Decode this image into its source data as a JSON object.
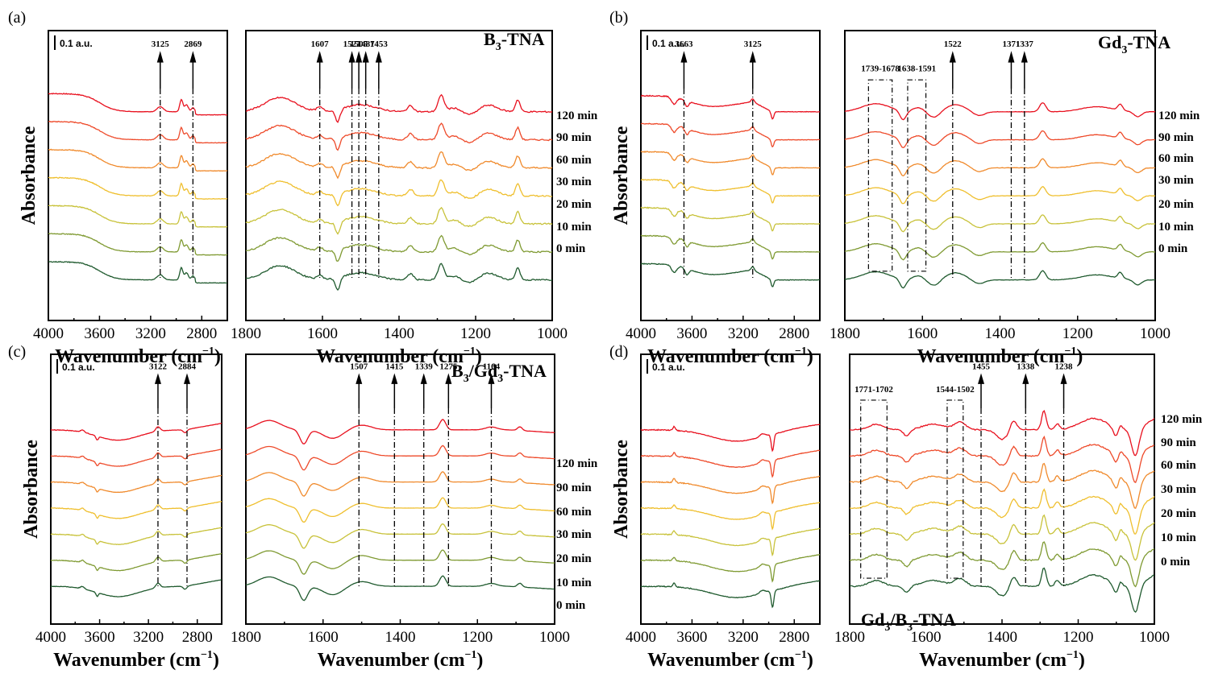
{
  "figure": {
    "ylabel": "Absorbance",
    "xlabel": "Wavenumber (cm",
    "xlabel_sup": "−1",
    "scale_bar_label": "0.1 a.u.",
    "time_labels": [
      "120 min",
      "90 min",
      "60 min",
      "30 min",
      "20 min",
      "10 min",
      "0 min"
    ],
    "series_colors": [
      "#e8101e",
      "#ee4a2a",
      "#f08a2c",
      "#efbf2e",
      "#c8c23a",
      "#7f9a32",
      "#1f5a2e"
    ]
  },
  "chart_data": [
    {
      "type": "line",
      "panel": "(a)",
      "title": "B3-TNA",
      "title_main": "B",
      "title_sub": "3",
      "title_rest": "-TNA",
      "left": {
        "xlim": [
          4000,
          2600
        ],
        "xticks": [
          "4000",
          "3600",
          "3200",
          "2800"
        ],
        "annotations": [
          {
            "label": "3125",
            "x": 3125,
            "style": "arrow-up"
          },
          {
            "label": "2869",
            "x": 2869,
            "style": "arrow-up"
          }
        ],
        "series_profile": "broad rise 3700-3300, peaks near 3125, 2960, 2920, 2869"
      },
      "right": {
        "xlim": [
          1800,
          1000
        ],
        "xticks": [
          "1800",
          "1600",
          "1400",
          "1200",
          "1000"
        ],
        "annotations": [
          {
            "label": "1607",
            "x": 1607,
            "style": "arrow-up"
          },
          {
            "label": "1523",
            "x": 1523,
            "style": "arrow-up"
          },
          {
            "label": "1505",
            "x": 1505,
            "style": "arrow-up"
          },
          {
            "label": "1487",
            "x": 1487,
            "style": "arrow-up"
          },
          {
            "label": "1453",
            "x": 1453,
            "style": "arrow-up"
          }
        ],
        "series_profile": "noisy band 1750-1650, dip at 1560, peaks at 1290, 1170, 1090"
      },
      "series": [
        "120 min",
        "90 min",
        "60 min",
        "30 min",
        "20 min",
        "10 min",
        "0 min"
      ]
    },
    {
      "type": "line",
      "panel": "(b)",
      "title": "Gd3-TNA",
      "title_main": "Gd",
      "title_sub": "3",
      "title_rest": "-TNA",
      "left": {
        "xlim": [
          4000,
          2600
        ],
        "xticks": [
          "4000",
          "3600",
          "3200",
          "2800"
        ],
        "annotations": [
          {
            "label": "3663",
            "x": 3663,
            "style": "arrow-up"
          },
          {
            "label": "3125",
            "x": 3125,
            "style": "arrow-up"
          }
        ],
        "series_profile": "dips near 3740 and 3640, rise to peak at 3125, dip at 2970"
      },
      "right": {
        "xlim": [
          1800,
          1000
        ],
        "xticks": [
          "1800",
          "1600",
          "1400",
          "1200",
          "1000"
        ],
        "annotations": [
          {
            "label": "1739-1678",
            "x1": 1739,
            "x2": 1678,
            "style": "box"
          },
          {
            "label": "1638-1591",
            "x1": 1638,
            "x2": 1591,
            "style": "box"
          },
          {
            "label": "1522",
            "x": 1522,
            "style": "arrow-up"
          },
          {
            "label": "1371",
            "x": 1371,
            "style": "arrow-up"
          },
          {
            "label": "1337",
            "x": 1337,
            "style": "arrow-up"
          }
        ],
        "series_profile": "broad hump 1740-1680, dip 1650, peak 1522, peaks 1290, 1150, 1090"
      },
      "series": [
        "120 min",
        "90 min",
        "60 min",
        "30 min",
        "20 min",
        "10 min",
        "0 min"
      ]
    },
    {
      "type": "line",
      "panel": "(c)",
      "title": "B3/Gd3-TNA",
      "title_main": "B",
      "title_sub": "3",
      "title_rest": "/Gd",
      "title_sub2": "3",
      "title_rest2": "-TNA",
      "left": {
        "xlim": [
          4000,
          2600
        ],
        "xticks": [
          "4000",
          "3600",
          "3200",
          "2800"
        ],
        "annotations": [
          {
            "label": "3122",
            "x": 3122,
            "style": "arrow-up"
          },
          {
            "label": "2884",
            "x": 2884,
            "style": "arrow-up"
          }
        ],
        "series_profile": "dip near 3600, trough 3450, rise to 3122 peak, dip near 2900"
      },
      "right": {
        "xlim": [
          1800,
          1000
        ],
        "xticks": [
          "1800",
          "1600",
          "1400",
          "1200",
          "1000"
        ],
        "annotations": [
          {
            "label": "1507",
            "x": 1507,
            "style": "arrow-up"
          },
          {
            "label": "1415",
            "x": 1415,
            "style": "arrow-up"
          },
          {
            "label": "1339",
            "x": 1339,
            "style": "arrow-up"
          },
          {
            "label": "1275",
            "x": 1275,
            "style": "arrow-up"
          },
          {
            "label": "1164",
            "x": 1164,
            "style": "arrow-up"
          }
        ],
        "series_profile": "hump 1740, dip 1650, trough 1575, peak 1290, small peak 1090"
      },
      "series": [
        "120 min",
        "90 min",
        "60 min",
        "30 min",
        "20 min",
        "10 min",
        "0 min"
      ]
    },
    {
      "type": "line",
      "panel": "(d)",
      "title": "Gd3/B3-TNA",
      "title_main": "Gd",
      "title_sub": "3",
      "title_rest": "/B",
      "title_sub2": "3",
      "title_rest2": "-TNA",
      "left": {
        "xlim": [
          4000,
          2600
        ],
        "xticks": [
          "4000",
          "3600",
          "3200",
          "2800"
        ],
        "annotations": [],
        "series_profile": "noisy 3800-3600, broad trough 3300, sharp dip 2970"
      },
      "right": {
        "xlim": [
          1800,
          1000
        ],
        "xticks": [
          "1800",
          "1600",
          "1400",
          "1200",
          "1000"
        ],
        "annotations": [
          {
            "label": "1771-1702",
            "x1": 1771,
            "x2": 1702,
            "style": "box"
          },
          {
            "label": "1544-1502",
            "x1": 1544,
            "x2": 1502,
            "style": "box"
          },
          {
            "label": "1455",
            "x": 1455,
            "style": "arrow-up"
          },
          {
            "label": "1338",
            "x": 1338,
            "style": "arrow-up"
          },
          {
            "label": "1238",
            "x": 1238,
            "style": "arrow-up"
          }
        ],
        "series_profile": "noisy 1780-1450, peaks 1370 and 1290, broad 1160, deep dip 1050"
      },
      "series": [
        "120 min",
        "90 min",
        "60 min",
        "30 min",
        "20 min",
        "10 min",
        "0 min"
      ]
    }
  ]
}
